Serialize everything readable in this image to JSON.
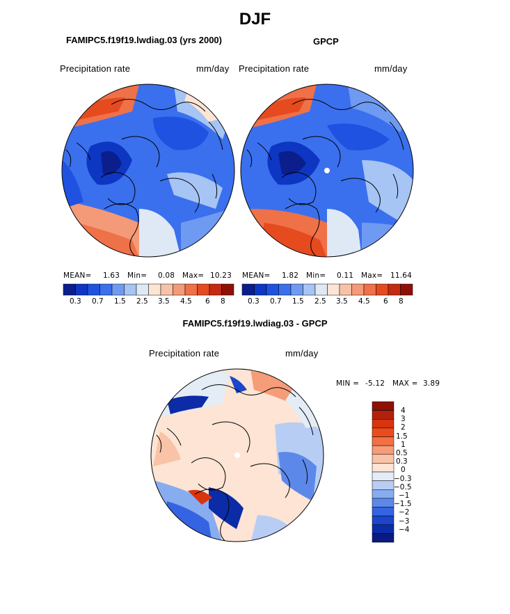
{
  "season": "DJF",
  "chart_data": [
    {
      "type": "heatmap",
      "title": "FAMIPC5.f19f19.lwdiag.03 (yrs 2000)",
      "variable": "Precipitation rate",
      "units": "mm/day",
      "projection": "north polar stereographic",
      "stats": {
        "mean_label": "MEAN=",
        "mean": "1.63",
        "min_label": "Min=",
        "min": "0.08",
        "max_label": "Max=",
        "max": "10.23"
      },
      "colorbar_levels": [
        "0.3",
        "0.7",
        "1.5",
        "2.5",
        "3.5",
        "4.5",
        "6",
        "8"
      ]
    },
    {
      "type": "heatmap",
      "title": "GPCP",
      "variable": "Precipitation rate",
      "units": "mm/day",
      "projection": "north polar stereographic",
      "stats": {
        "mean_label": "MEAN=",
        "mean": "1.82",
        "min_label": "Min=",
        "min": "0.11",
        "max_label": "Max=",
        "max": "11.64"
      },
      "colorbar_levels": [
        "0.3",
        "0.7",
        "1.5",
        "2.5",
        "3.5",
        "4.5",
        "6",
        "8"
      ]
    },
    {
      "type": "heatmap",
      "title": "FAMIPC5.f19f19.lwdiag.03 - GPCP",
      "variable": "Precipitation rate",
      "units": "mm/day",
      "projection": "north polar stereographic",
      "stats": {
        "min_label": "MIN =",
        "min": "-5.12",
        "max_label": "MAX =",
        "max": "3.89"
      },
      "colorbar_levels": [
        "4",
        "3",
        "2",
        "1.5",
        "1",
        "0.5",
        "0.3",
        "0",
        "−0.3",
        "−0.5",
        "−1",
        "−1.5",
        "−2",
        "−3",
        "−4"
      ]
    }
  ],
  "colors": {
    "seq": [
      "#0a1e8c",
      "#0d36c2",
      "#1f52e0",
      "#3a70ee",
      "#6f9af2",
      "#a6c4f4",
      "#dfe9f6",
      "#fde5d6",
      "#f8c2a8",
      "#f49a78",
      "#ef7148",
      "#e64a1f",
      "#c52b10",
      "#8e1106"
    ],
    "diff": [
      "#8e1106",
      "#b3210c",
      "#d8350f",
      "#ec4b1c",
      "#f27044",
      "#f59c78",
      "#f8c3a6",
      "#fde4d4",
      "#e4ecf6",
      "#b7cdf3",
      "#88acf0",
      "#5c88ea",
      "#3564e2",
      "#1b45cc",
      "#0c2ba6",
      "#081b82"
    ]
  }
}
